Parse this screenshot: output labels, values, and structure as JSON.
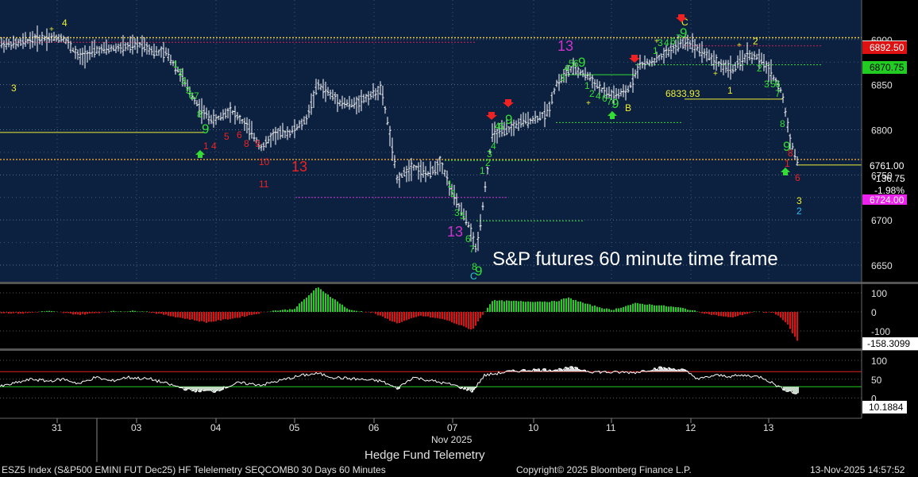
{
  "annotation_text": "S&P futures 60 minute time frame",
  "chart_title": "Hedge Fund Telemetry",
  "x_month_label": "Nov 2025",
  "x_ticks": [
    "31",
    "03",
    "04",
    "05",
    "06",
    "07",
    "10",
    "11",
    "12",
    "13"
  ],
  "footer": {
    "security": "ESZ5 Index (S&P500 EMINI FUT  Dec25) HF Telelemetry SEQCOMB0 30 Days 60 Minutes",
    "copyright": "Copyright© 2025 Bloomberg Finance L.P.",
    "timestamp": "13-Nov-2025 14:57:52"
  },
  "price_panel": {
    "y_ticks": [
      "6900",
      "6850",
      "6800",
      "6750",
      "6700",
      "6650"
    ],
    "last_price": "6761.00",
    "change": "-136.75",
    "change_pct": "-1.98%",
    "level_red": "6892.50",
    "level_green": "6870.75",
    "level_magenta": "6724.00",
    "level_mid_label": "6833.93",
    "colors": {
      "background": "#0c2140",
      "candles": "#ffffff",
      "buy_count": "#33dd33",
      "sell_count": "#ee2222",
      "combo_13": "#cc33cc",
      "countdown": "#eeee33"
    }
  },
  "momentum_panel": {
    "y_ticks": [
      "100",
      "0",
      "-100"
    ],
    "last_value": "-158.3099",
    "colors": {
      "positive": "#22cc22",
      "negative": "#dd1111"
    }
  },
  "oscillator_panel": {
    "y_ticks": [
      "100",
      "50",
      "0"
    ],
    "last_value": "10.1884",
    "upper_band": 70,
    "lower_band": 30,
    "colors": {
      "line": "#ffffff",
      "upper": "#dd2222",
      "lower": "#22cc22"
    }
  },
  "chart_data": {
    "type": "candlestick",
    "note_units": "index points",
    "x": [
      "31",
      "03",
      "04",
      "05",
      "06",
      "07",
      "10",
      "11",
      "12",
      "13"
    ],
    "close_approx": [
      6900,
      6890,
      6800,
      6790,
      6760,
      6660,
      6860,
      6840,
      6880,
      6761
    ],
    "ylim": [
      6630,
      6920
    ],
    "momentum_ylim": [
      -150,
      130
    ],
    "oscillator_ylim": [
      0,
      110
    ]
  }
}
